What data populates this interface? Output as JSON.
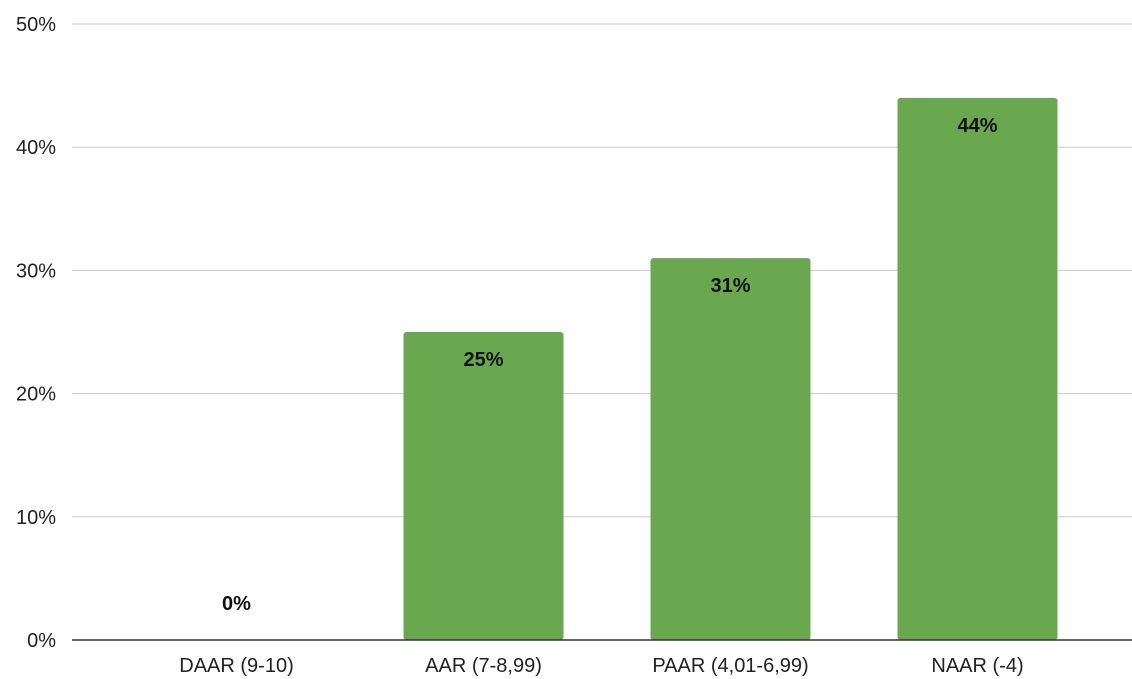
{
  "chart_data": {
    "type": "bar",
    "title": "",
    "xlabel": "",
    "ylabel": "",
    "categories": [
      "DAAR (9-10)",
      "AAR (7-8,99)",
      "PAAR (4,01-6,99)",
      "NAAR (-4)"
    ],
    "values": [
      0,
      25,
      31,
      44
    ],
    "data_labels": [
      "0%",
      "25%",
      "31%",
      "44%"
    ],
    "ylim": [
      0,
      50
    ],
    "yticks": [
      0,
      10,
      20,
      30,
      40,
      50
    ],
    "ytick_labels": [
      "0%",
      "10%",
      "20%",
      "30%",
      "40%",
      "50%"
    ],
    "grid": true,
    "legend": "none",
    "bar_color": "#6aa84f"
  }
}
